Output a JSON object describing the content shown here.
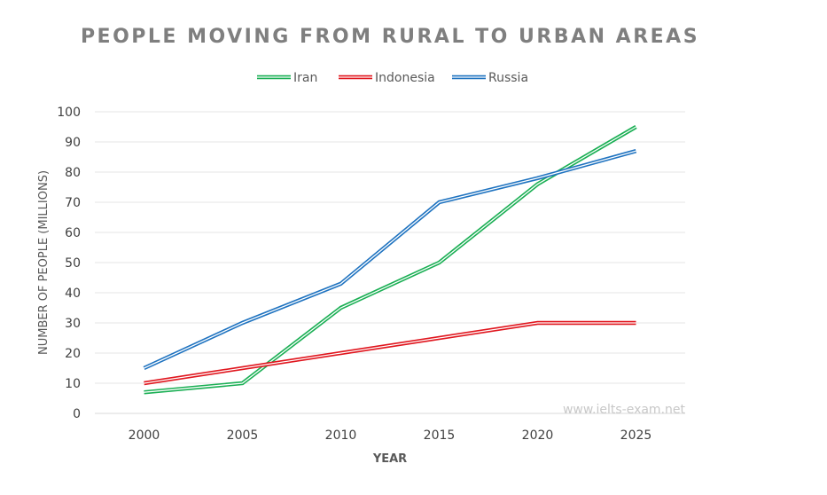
{
  "chart_data": {
    "type": "line",
    "title": "PEOPLE MOVING FROM RURAL TO URBAN AREAS",
    "xlabel": "YEAR",
    "ylabel": "NUMBER OF PEOPLE (MILLIONS)",
    "categories": [
      "2000",
      "2005",
      "2010",
      "2015",
      "2020",
      "2025"
    ],
    "ylim": [
      0,
      100
    ],
    "yticks": [
      "0",
      "10",
      "20",
      "30",
      "40",
      "50",
      "60",
      "70",
      "80",
      "90",
      "100"
    ],
    "grid": true,
    "legend_position": "top",
    "line_style": "double",
    "series": [
      {
        "name": "Iran",
        "color": "#1aaf54",
        "values": [
          7,
          10,
          35,
          50,
          76,
          95
        ]
      },
      {
        "name": "Indonesia",
        "color": "#e0161e",
        "values": [
          10,
          15,
          20,
          25,
          30,
          30
        ]
      },
      {
        "name": "Russia",
        "color": "#1f73c0",
        "values": [
          15,
          30,
          43,
          70,
          78,
          87
        ]
      }
    ],
    "watermark": "www.ielts-exam.net"
  }
}
